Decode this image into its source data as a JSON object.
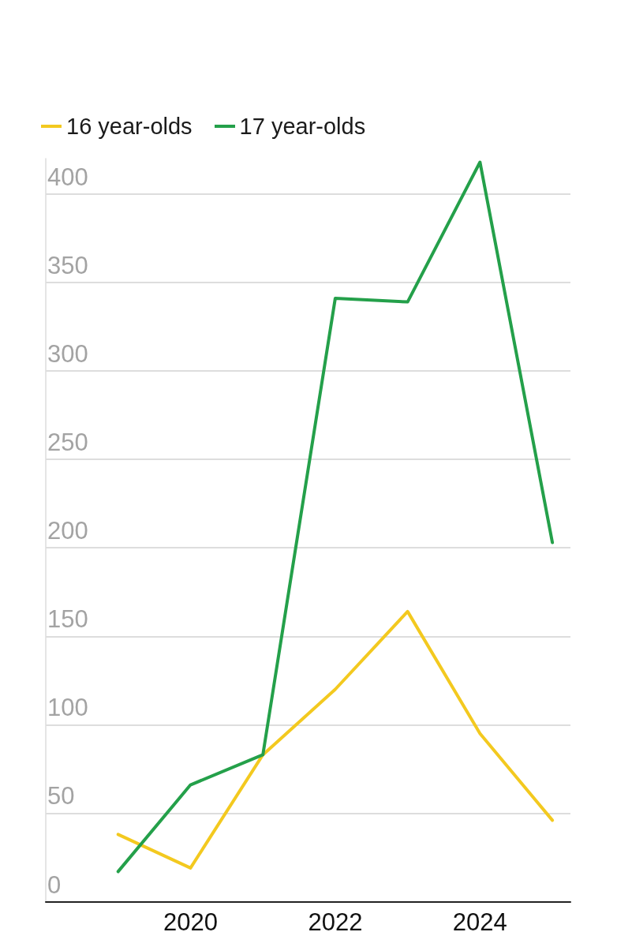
{
  "chart_data": {
    "type": "line",
    "x": [
      2019,
      2020,
      2021,
      2022,
      2023,
      2024,
      2025
    ],
    "series": [
      {
        "name": "16 year-olds",
        "color": "#f3c91f",
        "values": [
          38,
          19,
          83,
          120,
          164,
          95,
          46
        ]
      },
      {
        "name": "17 year-olds",
        "color": "#24a04a",
        "values": [
          17,
          66,
          83,
          341,
          339,
          418,
          203
        ]
      }
    ],
    "xlim": [
      2018,
      2025.25
    ],
    "xticks": [
      2020,
      2022,
      2024
    ],
    "ylim": [
      0,
      420
    ],
    "yticks": [
      0,
      50,
      100,
      150,
      200,
      250,
      300,
      350,
      400
    ],
    "grid": "y",
    "legend": "top left",
    "line_style": "solid"
  }
}
